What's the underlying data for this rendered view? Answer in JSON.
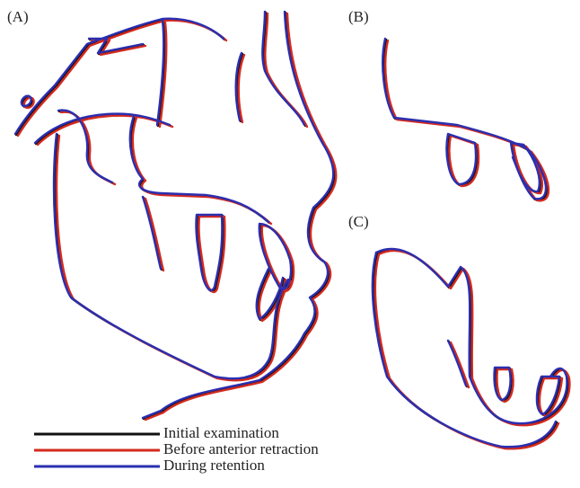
{
  "panels": [
    {
      "label": "(A)"
    },
    {
      "label": "(B)"
    },
    {
      "label": "(C)"
    }
  ],
  "legend": [
    {
      "name": "Initial examination",
      "color": "#111111"
    },
    {
      "name": "Before anterior retraction",
      "color": "#d42a1e"
    },
    {
      "name": "During retention",
      "color": "#2b2fb0"
    }
  ]
}
